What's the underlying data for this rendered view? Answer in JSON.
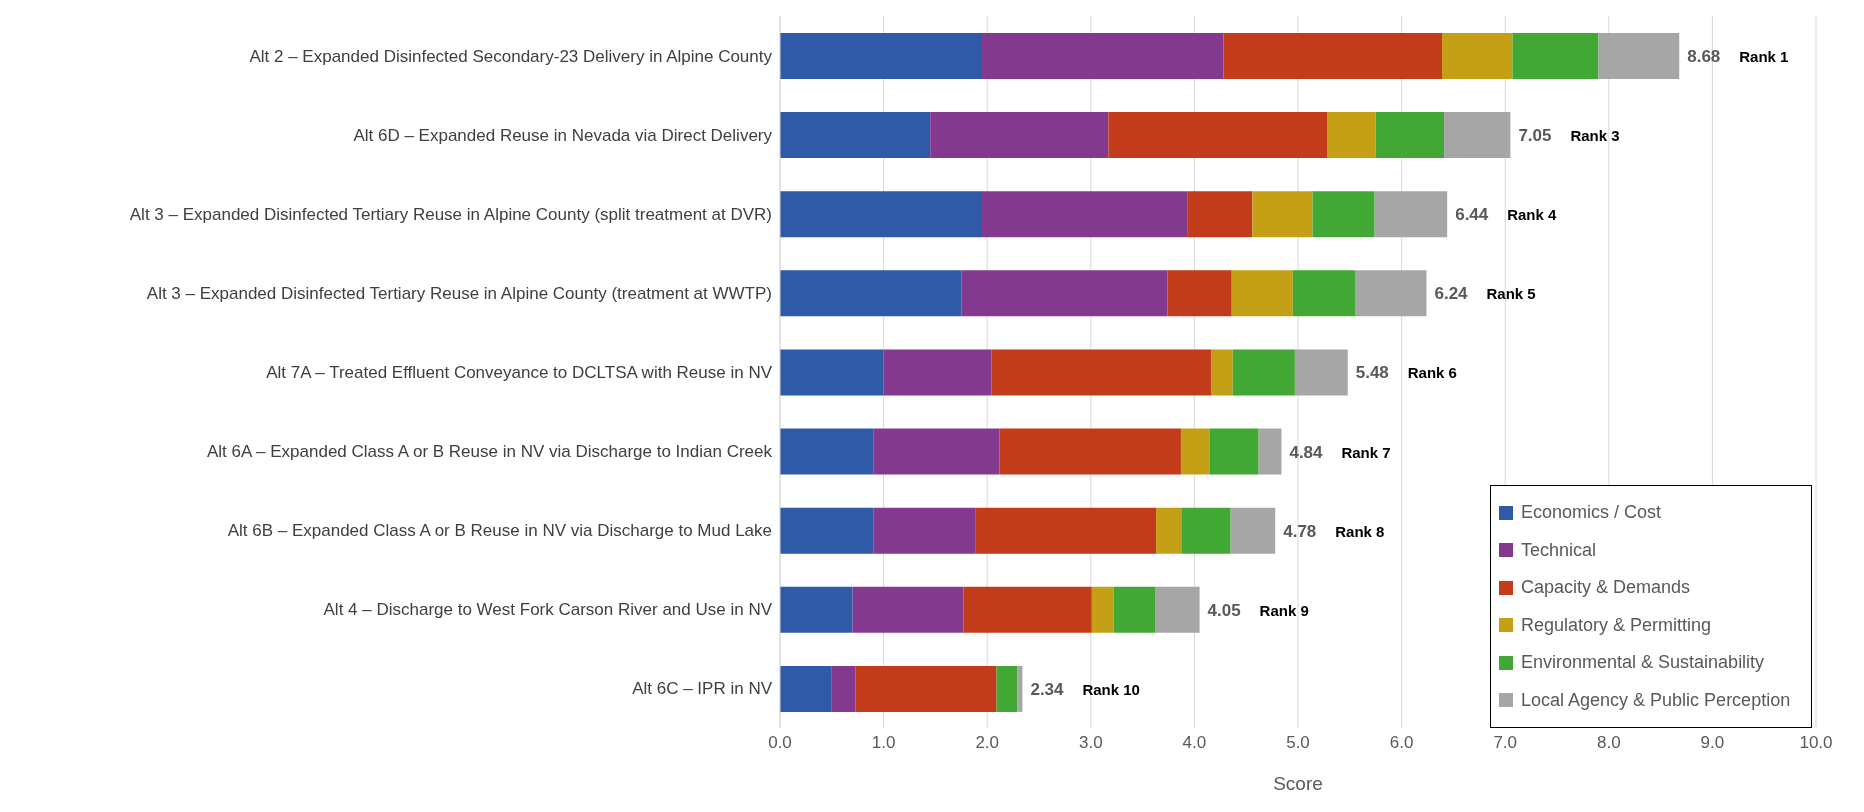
{
  "chart_data": {
    "type": "bar",
    "orientation": "horizontal",
    "stacked": true,
    "xlabel": "Score",
    "categories": [
      "Alt 2 – Expanded Disinfected Secondary-23 Delivery in Alpine County",
      "Alt 6D – Expanded Reuse in Nevada via Direct Delivery",
      "Alt 3 – Expanded Disinfected Tertiary Reuse in Alpine County (split treatment at DVR)",
      "Alt 3 – Expanded Disinfected Tertiary Reuse in Alpine County (treatment at WWTP)",
      "Alt 7A – Treated Effluent Conveyance to DCLTSA with Reuse in NV",
      "Alt 6A – Expanded Class A or B Reuse in NV via Discharge to Indian Creek",
      "Alt 6B – Expanded Class A or B Reuse in NV via Discharge to Mud Lake",
      "Alt 4 – Discharge to West Fork Carson River and Use in NV",
      "Alt 6C – IPR in NV"
    ],
    "series": [
      {
        "name": "Economics / Cost",
        "color": "#2e5aa8",
        "values": [
          1.95,
          1.45,
          1.95,
          1.75,
          1.0,
          0.9,
          0.9,
          0.7,
          0.5
        ]
      },
      {
        "name": "Technical",
        "color": "#833a8e",
        "values": [
          2.33,
          1.72,
          1.98,
          1.99,
          1.04,
          1.22,
          0.99,
          1.07,
          0.23
        ]
      },
      {
        "name": "Capacity & Demands",
        "color": "#c23b1a",
        "values": [
          2.11,
          2.11,
          0.63,
          0.62,
          2.12,
          1.75,
          1.74,
          1.24,
          1.36
        ]
      },
      {
        "name": "Regulatory & Permitting",
        "color": "#c4a017",
        "values": [
          0.68,
          0.47,
          0.58,
          0.59,
          0.21,
          0.28,
          0.25,
          0.21,
          0
        ]
      },
      {
        "name": "Environmental & Sustainability",
        "color": "#42a835",
        "values": [
          0.83,
          0.66,
          0.6,
          0.6,
          0.6,
          0.47,
          0.47,
          0.4,
          0.2
        ]
      },
      {
        "name": "Local Agency & Public Perception",
        "color": "#a6a6a6",
        "values": [
          0.78,
          0.64,
          0.7,
          0.69,
          0.51,
          0.22,
          0.43,
          0.43,
          0.05
        ]
      }
    ],
    "totals": [
      "8.68",
      "7.05",
      "6.44",
      "6.24",
      "5.48",
      "4.84",
      "4.78",
      "4.05",
      "2.34"
    ],
    "annotations": [
      "Rank 1",
      "Rank 3",
      "Rank 4",
      "Rank 5",
      "Rank 6",
      "Rank 7",
      "Rank 8",
      "Rank 9",
      "Rank 10"
    ],
    "xlim": [
      0,
      10
    ],
    "xticks": [
      {
        "value": 0,
        "label": "0.0"
      },
      {
        "value": 1,
        "label": "1.0"
      },
      {
        "value": 2,
        "label": "2.0"
      },
      {
        "value": 3,
        "label": "3.0"
      },
      {
        "value": 4,
        "label": "4.0"
      },
      {
        "value": 5,
        "label": "5.0"
      },
      {
        "value": 6,
        "label": "6.0"
      },
      {
        "value": 7,
        "label": "7.0"
      },
      {
        "value": 8,
        "label": "8.0"
      },
      {
        "value": 9,
        "label": "9.0"
      },
      {
        "value": 10,
        "label": "10.0"
      }
    ],
    "grid": "x",
    "legend": "bottom right"
  }
}
